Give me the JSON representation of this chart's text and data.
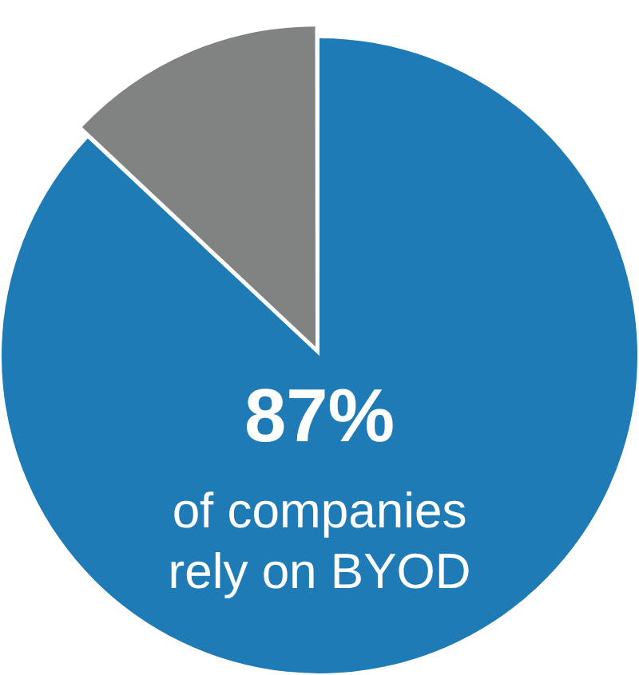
{
  "chart_data": {
    "type": "pie",
    "categories": [
      null,
      null
    ],
    "values": [
      87,
      13
    ],
    "colors": [
      "#1f7bb6",
      "#818282"
    ],
    "value_labels": [
      "87%",
      null
    ],
    "annotations": [
      "of companies rely on BYOD"
    ],
    "legend": false
  }
}
